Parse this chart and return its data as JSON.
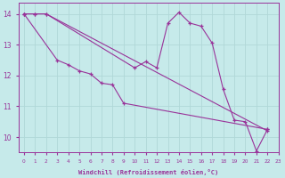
{
  "xlabel": "Windchill (Refroidissement éolien,°C)",
  "xlim": [
    -0.5,
    23
  ],
  "ylim": [
    9.5,
    14.35
  ],
  "yticks": [
    10,
    11,
    12,
    13,
    14
  ],
  "xticks": [
    0,
    1,
    2,
    3,
    4,
    5,
    6,
    7,
    8,
    9,
    10,
    11,
    12,
    13,
    14,
    15,
    16,
    17,
    18,
    19,
    20,
    21,
    22,
    23
  ],
  "bg_color": "#c6eaea",
  "line_color": "#993399",
  "grid_color": "#b0d8d8",
  "series": [
    {
      "x": [
        0,
        1,
        2,
        10,
        11,
        12,
        13,
        14,
        15,
        16,
        17,
        18,
        19,
        20,
        21,
        22
      ],
      "y": [
        14.0,
        14.0,
        14.0,
        12.25,
        12.45,
        12.25,
        13.7,
        14.05,
        13.7,
        13.6,
        13.05,
        11.55,
        10.55,
        10.5,
        9.55,
        10.25
      ]
    },
    {
      "x": [
        0,
        1,
        2,
        22
      ],
      "y": [
        14.0,
        14.0,
        14.0,
        10.2
      ]
    },
    {
      "x": [
        0,
        3,
        4,
        5,
        6,
        7,
        8,
        9,
        22
      ],
      "y": [
        14.0,
        12.5,
        12.35,
        12.15,
        12.05,
        11.75,
        11.7,
        11.1,
        10.25
      ]
    }
  ]
}
